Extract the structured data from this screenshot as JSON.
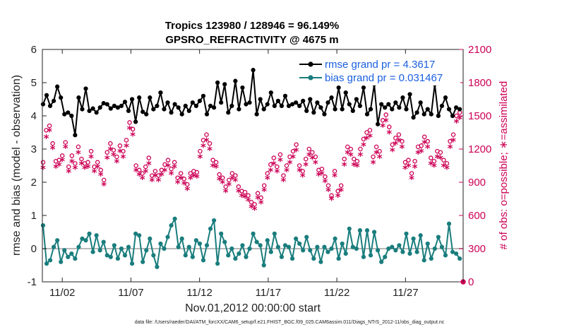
{
  "chart_data": {
    "type": "line",
    "title": "Tropics 123980 / 128946 = 96.149%",
    "subtitle": "GPSRO_REFRACTIVITY @ 4675 m",
    "xlabel": "Nov.01,2012 00:00:00 start",
    "ylabel": "rmse and bias (model - observation)",
    "y2label": "# of obs: o=possible; ∗=assimilated",
    "ylim": [
      -1,
      6
    ],
    "y2lim": [
      0,
      2100
    ],
    "xlim": [
      0.55,
      31.2
    ],
    "x_tick_values": [
      2,
      7,
      12,
      17,
      22,
      27
    ],
    "x_tick_labels": [
      "11/02",
      "11/07",
      "11/12",
      "11/17",
      "11/22",
      "11/27"
    ],
    "y_ticks": [
      -1,
      0,
      1,
      2,
      3,
      4,
      5,
      6
    ],
    "y2_ticks": [
      0,
      300,
      600,
      900,
      1200,
      1500,
      1800,
      2100
    ],
    "legend_position": "top-right",
    "legend": [
      "rmse grand pr = 4.3617",
      "bias grand pr = 0.031467"
    ],
    "footnote": "data file: /Users/raeder/DAI/ATM_forcXX/CAM6_setup/f.e21.FHIST_BGC.f09_025.CAM6assim.011/Diags_NTrS_2012-11/obs_diag_output.nc",
    "series": [
      {
        "name": "rmse",
        "color": "#000000",
        "values": [
          4.35,
          4.62,
          4.3,
          4.45,
          4.88,
          4.55,
          4.05,
          4.1,
          4.0,
          3.42,
          4.55,
          4.2,
          4.82,
          4.15,
          4.22,
          4.1,
          4.25,
          4.38,
          4.35,
          4.22,
          4.3,
          4.25,
          4.3,
          4.42,
          4.15,
          4.5,
          3.82,
          4.55,
          4.12,
          4.05,
          4.55,
          4.2,
          4.3,
          4.7,
          4.2,
          4.4,
          4.1,
          4.35,
          4.25,
          4.05,
          4.3,
          4.15,
          4.4,
          4.3,
          4.45,
          4.6,
          4.05,
          4.3,
          4.25,
          5.0,
          4.4,
          4.95,
          4.1,
          4.3,
          5.05,
          4.2,
          4.85,
          4.35,
          4.4,
          5.38,
          4.05,
          4.5,
          4.2,
          4.35,
          4.7,
          4.3,
          4.45,
          4.3,
          4.6,
          4.3,
          4.35,
          4.4,
          4.3,
          4.45,
          4.15,
          4.5,
          4.1,
          4.4,
          4.25,
          4.05,
          4.4,
          4.55,
          4.2,
          4.85,
          4.2,
          4.7,
          4.35,
          4.15,
          4.5,
          4.3,
          4.85,
          4.05,
          4.2,
          4.95,
          3.75,
          4.35,
          4.25,
          4.35,
          4.2,
          4.4,
          4.25,
          4.55,
          4.2,
          4.65,
          3.95,
          4.1,
          4.4,
          4.05,
          4.2,
          4.05,
          4.95,
          4.0,
          4.3,
          4.55,
          4.2,
          4.0,
          4.25,
          4.2
        ]
      },
      {
        "name": "bias",
        "color": "#1a7d7d",
        "values": [
          0.7,
          -0.45,
          -0.35,
          0.05,
          0.25,
          -0.4,
          -0.05,
          -0.25,
          -0.15,
          -0.3,
          0.05,
          0.3,
          0.25,
          0.45,
          -0.1,
          0.4,
          -0.05,
          0.2,
          -0.2,
          -0.25,
          0.1,
          -0.3,
          0.0,
          -0.2,
          0.05,
          -0.45,
          0.45,
          0.4,
          -0.4,
          -0.05,
          0.3,
          -0.2,
          -0.55,
          0.15,
          0.0,
          0.35,
          0.7,
          0.9,
          0.05,
          0.3,
          -0.2,
          0.05,
          -0.25,
          0.25,
          0.15,
          -0.35,
          0.1,
          0.6,
          0.85,
          -0.45,
          0.45,
          0.2,
          -0.2,
          0.0,
          -0.3,
          -0.15,
          0.1,
          -0.25,
          0.0,
          0.45,
          0.2,
          0.1,
          -0.5,
          0.25,
          -0.1,
          0.45,
          0.05,
          -0.25,
          0.1,
          0.05,
          -0.3,
          0.3,
          0.15,
          -0.05,
          0.35,
          -0.05,
          -0.3,
          0.05,
          -0.4,
          0.05,
          -0.1,
          0.0,
          0.3,
          -0.3,
          0.15,
          -0.15,
          0.6,
          0.05,
          0.0,
          0.55,
          -0.25,
          0.55,
          -0.2,
          0.5,
          -0.05,
          -0.4,
          -0.25,
          0.0,
          0.05,
          -0.05,
          0.1,
          -0.1,
          0.45,
          -0.15,
          0.3,
          -0.1,
          0.4,
          -0.35,
          0.15,
          -0.3,
          0.0,
          0.35,
          0.05,
          -0.2,
          0.75,
          -0.1,
          -0.15,
          -0.3
        ]
      },
      {
        "name": "possible",
        "marker": "o",
        "color": "#cc0055",
        "values": [
          1080,
          1370,
          1410,
          1250,
          1090,
          1100,
          1140,
          1260,
          1040,
          1140,
          1070,
          1220,
          1110,
          1070,
          1080,
          1180,
          1040,
          1080,
          1010,
          920,
          1170,
          1250,
          1190,
          1130,
          1230,
          1180,
          1280,
          1440,
          1380,
          1050,
          1010,
          980,
          1040,
          1120,
          960,
          1000,
          960,
          1010,
          1060,
          1100,
          1020,
          1080,
          940,
          980,
          930,
          880,
          980,
          1000,
          990,
          1180,
          1280,
          1330,
          1250,
          1100,
          1080,
          970,
          940,
          860,
          920,
          980,
          960,
          860,
          820,
          810,
          780,
          720,
          700,
          800,
          760,
          870,
          980,
          1060,
          1120,
          1040,
          1150,
          960,
          1050,
          1130,
          1180,
          1240,
          1050,
          1000,
          1110,
          1200,
          1170,
          1130,
          1010,
          1020,
          950,
          870,
          780,
          1000,
          820,
          870,
          1110,
          1220,
          1200,
          1110,
          1090,
          1200,
          1290,
          1350,
          1370,
          1130,
          1220,
          1180,
          1460,
          1510,
          1400,
          1240,
          1300,
          1330,
          1270,
          1080,
          1100,
          980,
          1090,
          1220,
          1230,
          1310,
          1270,
          1120,
          1090,
          1180,
          1170,
          1100,
          1070,
          1270,
          1330,
          1500,
          1530
        ]
      },
      {
        "name": "assimilated",
        "marker": "*",
        "color": "#cc0055",
        "values": [
          1020,
          1300,
          1360,
          1200,
          1030,
          1050,
          1090,
          1210,
          990,
          1080,
          1020,
          1160,
          1060,
          1020,
          1030,
          1120,
          990,
          1030,
          960,
          870,
          1110,
          1190,
          1140,
          1080,
          1170,
          1120,
          1220,
          1380,
          1320,
          1000,
          960,
          930,
          990,
          1060,
          910,
          950,
          910,
          960,
          1000,
          1040,
          970,
          1030,
          890,
          930,
          880,
          830,
          930,
          950,
          940,
          1120,
          1220,
          1270,
          1190,
          1040,
          1030,
          920,
          890,
          810,
          870,
          930,
          910,
          810,
          770,
          760,
          730,
          670,
          650,
          750,
          710,
          820,
          930,
          1000,
          1060,
          990,
          1090,
          910,
          1000,
          1070,
          1120,
          1180,
          1000,
          950,
          1050,
          1140,
          1110,
          1070,
          960,
          970,
          900,
          820,
          740,
          950,
          770,
          820,
          1050,
          1160,
          1140,
          1050,
          1040,
          1140,
          1230,
          1290,
          1310,
          1070,
          1160,
          1120,
          1400,
          1450,
          1340,
          1180,
          1240,
          1270,
          1210,
          1020,
          1040,
          930,
          1030,
          1160,
          1170,
          1250,
          1210,
          1060,
          1040,
          1120,
          1110,
          1040,
          1020,
          1210,
          1270,
          1440,
          1470
        ]
      }
    ]
  }
}
